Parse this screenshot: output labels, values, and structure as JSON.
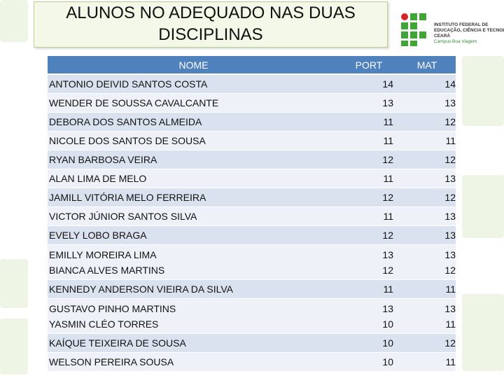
{
  "title": {
    "line1": "ALUNOS NO ADEQUADO NAS DUAS",
    "line2": "DISCIPLINAS"
  },
  "logo": {
    "line1": "INSTITUTO FEDERAL DE",
    "line2": "EDUCAÇÃO, CIÊNCIA E TECNOLOGIA",
    "line3": "CEARÁ",
    "line4": "Campus Boa Viagem",
    "colors": {
      "green": "#3fa535",
      "red": "#d6232a"
    }
  },
  "table": {
    "headers": {
      "name": "NOME",
      "port": "PORT",
      "mat": "MAT"
    },
    "rows": [
      {
        "names": [
          "ANTONIO DEIVID SANTOS COSTA"
        ],
        "port": [
          "14"
        ],
        "mat": [
          "14"
        ]
      },
      {
        "names": [
          "WENDER DE SOUSSA CAVALCANTE"
        ],
        "port": [
          "13"
        ],
        "mat": [
          "13"
        ]
      },
      {
        "names": [
          "DEBORA DOS SANTOS ALMEIDA"
        ],
        "port": [
          "11"
        ],
        "mat": [
          "12"
        ]
      },
      {
        "names": [
          "NICOLE DOS SANTOS DE SOUSA"
        ],
        "port": [
          "11"
        ],
        "mat": [
          "11"
        ]
      },
      {
        "names": [
          "RYAN BARBOSA VEIRA"
        ],
        "port": [
          "12"
        ],
        "mat": [
          "12"
        ]
      },
      {
        "names": [
          "ALAN LIMA DE MELO"
        ],
        "port": [
          "11"
        ],
        "mat": [
          "13"
        ]
      },
      {
        "names": [
          "JAMILL VITÓRIA MELO FERREIRA"
        ],
        "port": [
          "12"
        ],
        "mat": [
          "12"
        ]
      },
      {
        "names": [
          "VICTOR JÚNIOR SANTOS SILVA"
        ],
        "port": [
          "11"
        ],
        "mat": [
          "13"
        ]
      },
      {
        "names": [
          "EVELY LOBO BRAGA"
        ],
        "port": [
          "12"
        ],
        "mat": [
          "13"
        ]
      },
      {
        "names": [
          "EMILLY MOREIRA LIMA",
          "BIANCA ALVES MARTINS"
        ],
        "port": [
          "13",
          "12"
        ],
        "mat": [
          "13",
          "12"
        ]
      },
      {
        "names": [
          "KENNEDY ANDERSON VIEIRA DA SILVA"
        ],
        "port": [
          "11"
        ],
        "mat": [
          "11"
        ]
      },
      {
        "names": [
          "GUSTAVO PINHO MARTINS",
          "YASMIN CLÉO TORRES"
        ],
        "port": [
          "13",
          "10"
        ],
        "mat": [
          "13",
          "11"
        ]
      },
      {
        "names": [
          "KAÍQUE TEIXEIRA DE SOUSA"
        ],
        "port": [
          "10"
        ],
        "mat": [
          "12"
        ]
      },
      {
        "names": [
          "WELSON PEREIRA SOUSA"
        ],
        "port": [
          "10"
        ],
        "mat": [
          "11"
        ]
      }
    ]
  },
  "colors": {
    "header": "#4f81bd",
    "row_dark": "#dbe2ef",
    "row_light": "#eef1f7",
    "title_bg": "#f3f8e8"
  }
}
